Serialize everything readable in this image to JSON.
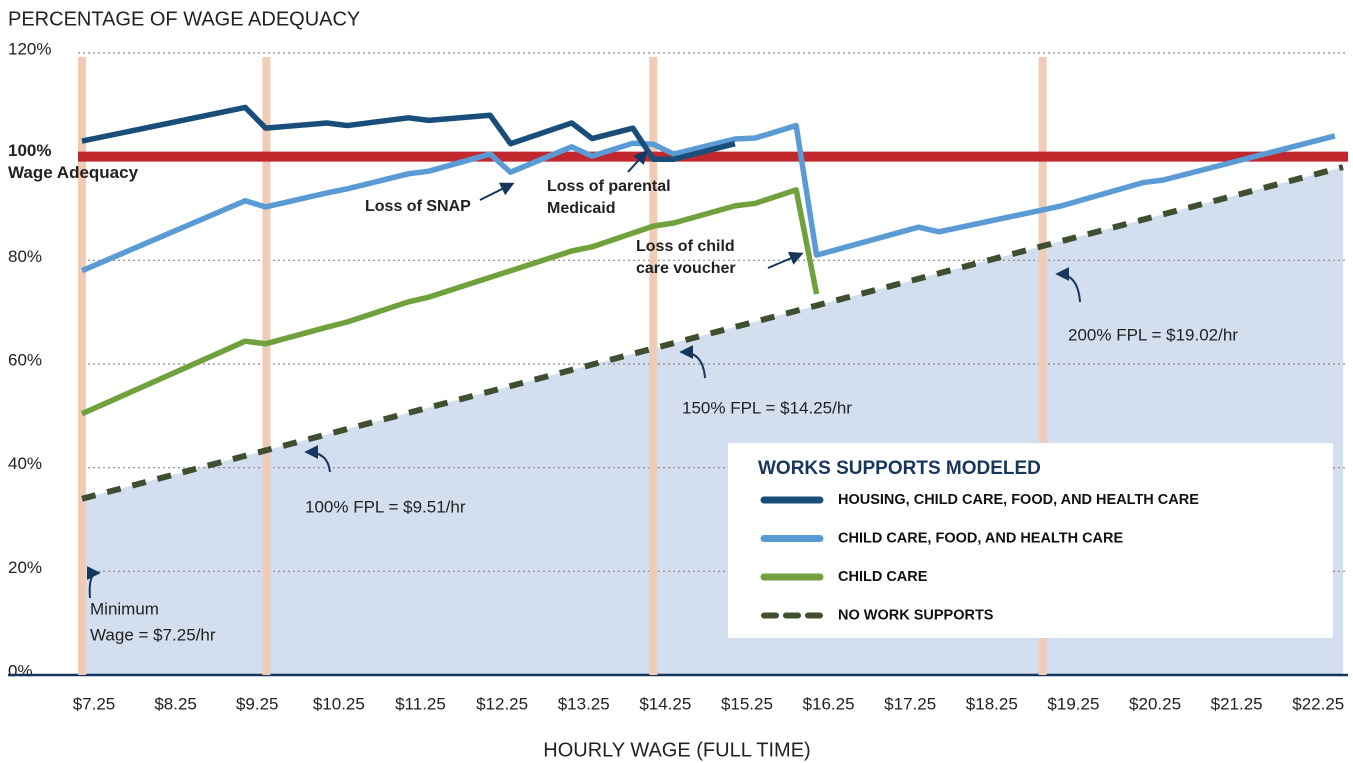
{
  "chart_data": {
    "type": "line",
    "title": "PERCENTAGE OF WAGE ADEQUACY",
    "x_label": "HOURLY WAGE (FULL TIME)",
    "xlim": [
      7.25,
      22.7
    ],
    "xticks": [
      {
        "value": 7.25,
        "label": "$7.25"
      },
      {
        "value": 8.25,
        "label": "$8.25"
      },
      {
        "value": 9.25,
        "label": "$9.25"
      },
      {
        "value": 10.25,
        "label": "$10.25"
      },
      {
        "value": 11.25,
        "label": "$11.25"
      },
      {
        "value": 12.25,
        "label": "$12.25"
      },
      {
        "value": 13.25,
        "label": "$13.25"
      },
      {
        "value": 14.25,
        "label": "$14.25"
      },
      {
        "value": 15.25,
        "label": "$15.25"
      },
      {
        "value": 16.25,
        "label": "$16.25"
      },
      {
        "value": 17.25,
        "label": "$17.25"
      },
      {
        "value": 18.25,
        "label": "$18.25"
      },
      {
        "value": 19.25,
        "label": "$19.25"
      },
      {
        "value": 20.25,
        "label": "$20.25"
      },
      {
        "value": 21.25,
        "label": "$21.25"
      },
      {
        "value": 22.25,
        "label": "$22.25"
      }
    ],
    "ylim": [
      0,
      120
    ],
    "yticks": [
      {
        "value": 0,
        "label": "0%"
      },
      {
        "value": 20,
        "label": "20%"
      },
      {
        "value": 40,
        "label": "40%"
      },
      {
        "value": 60,
        "label": "60%"
      },
      {
        "value": 80,
        "label": "80%"
      },
      {
        "value": 120,
        "label": "120%"
      }
    ],
    "grid": true,
    "reference_line": {
      "value": 100,
      "label": "100%",
      "text": "Wage Adequacy",
      "color": "#c0282d"
    },
    "vlines": [
      {
        "value": 7.25,
        "label": [
          "Minimum",
          "Wage = $7.25/hr"
        ]
      },
      {
        "value": 9.51,
        "label": [
          "100% FPL = $9.51/hr"
        ]
      },
      {
        "value": 14.25,
        "label": [
          "150% FPL = $14.25/hr"
        ]
      },
      {
        "value": 19.02,
        "label": [
          "200% FPL = $19.02/hr"
        ]
      }
    ],
    "vline_color": "#f0cbb6",
    "annotations": [
      [
        "Loss of SNAP"
      ],
      [
        "Loss of parental",
        "Medicaid"
      ],
      [
        "Loss of child",
        "care voucher"
      ]
    ],
    "legend_title": "WORKS SUPPORTS MODELED",
    "legend": "lower right",
    "series": [
      {
        "name": "HOUSING, CHILD CARE, FOOD, AND HEALTH CARE",
        "color": "#1a4e7a",
        "x": [
          7.25,
          9.25,
          9.5,
          10.25,
          10.5,
          11.25,
          11.5,
          12.25,
          12.5,
          13.25,
          13.5,
          14.0,
          14.25,
          14.5,
          15.25
        ],
        "values": [
          103,
          109.5,
          105.5,
          106.5,
          106,
          107.5,
          107,
          108,
          102.5,
          106.5,
          103.5,
          105.5,
          99.5,
          99.5,
          102.5
        ]
      },
      {
        "name": "CHILD CARE, FOOD, AND HEALTH CARE",
        "color": "#5b9bd5",
        "x": [
          7.25,
          9.25,
          9.5,
          10.25,
          10.5,
          11.25,
          11.5,
          12.25,
          12.5,
          13.25,
          13.5,
          14.0,
          14.25,
          14.5,
          15.25,
          15.5,
          16.0,
          16.25,
          17.5,
          17.75,
          19.25,
          20.25,
          20.5,
          22.6
        ],
        "values": [
          78,
          91.5,
          90.3,
          93,
          93.8,
          96.7,
          97.2,
          100.5,
          97,
          101.9,
          100.1,
          102.6,
          102.4,
          100.5,
          103.4,
          103.6,
          106,
          81,
          86.4,
          85.5,
          90.5,
          95,
          95.5,
          104
        ]
      },
      {
        "name": "CHILD CARE",
        "color": "#70a13d",
        "x": [
          7.25,
          9.25,
          9.5,
          10.25,
          10.5,
          11.25,
          11.5,
          13.25,
          13.5,
          14.25,
          14.5,
          15.25,
          15.5,
          16.0,
          16.25
        ],
        "values": [
          50.4,
          64.4,
          63.9,
          67.1,
          68.1,
          72,
          72.9,
          81.8,
          82.6,
          86.6,
          87.2,
          90.5,
          91,
          93.6,
          73.5
        ]
      },
      {
        "name": "NO WORK SUPPORTS",
        "color": "#3f4f2f",
        "dashed": true,
        "area_fill": "#d3dfee",
        "x": [
          7.25,
          22.7
        ],
        "values": [
          34,
          98
        ]
      }
    ]
  }
}
